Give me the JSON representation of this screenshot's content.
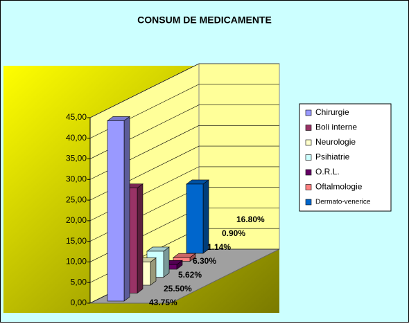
{
  "chart_data": {
    "type": "bar3d",
    "title": "CONSUM DE MEDICAMENTE",
    "series": [
      {
        "name": "Chirurgie",
        "color": "#9999ff",
        "values": [
          43.75
        ],
        "value_labels": [
          "43.75%"
        ]
      },
      {
        "name": "Boli interne",
        "color": "#993366",
        "values": [
          25.5
        ],
        "value_labels": [
          "25.50%"
        ]
      },
      {
        "name": "Neurologie",
        "color": "#ffffcc",
        "values": [
          5.62
        ],
        "value_labels": [
          "5.62%"
        ]
      },
      {
        "name": "Psihiatrie",
        "color": "#ccffff",
        "values": [
          6.3
        ],
        "value_labels": [
          "6.30%"
        ]
      },
      {
        "name": "O.R.L.",
        "color": "#660066",
        "values": [
          1.14
        ],
        "value_labels": [
          "1.14%"
        ]
      },
      {
        "name": "Oftalmologie",
        "color": "#ff8080",
        "values": [
          0.9
        ],
        "value_labels": [
          "0.90%"
        ]
      },
      {
        "name": "Dermato-venerice",
        "color": "#0066cc",
        "values": [
          16.8
        ],
        "value_labels": [
          "16.80%"
        ]
      }
    ],
    "ylim": [
      0,
      45
    ],
    "yticks": [
      {
        "value": 0,
        "label": "0,00"
      },
      {
        "value": 5,
        "label": "5,00"
      },
      {
        "value": 10,
        "label": "10,00"
      },
      {
        "value": 15,
        "label": "15,00"
      },
      {
        "value": 20,
        "label": "20,00"
      },
      {
        "value": 25,
        "label": "25,00"
      },
      {
        "value": 30,
        "label": "30,00"
      },
      {
        "value": 35,
        "label": "35,00"
      },
      {
        "value": 40,
        "label": "40,00"
      },
      {
        "value": 45,
        "label": "45,00"
      }
    ],
    "grid": true,
    "legend": "right"
  }
}
